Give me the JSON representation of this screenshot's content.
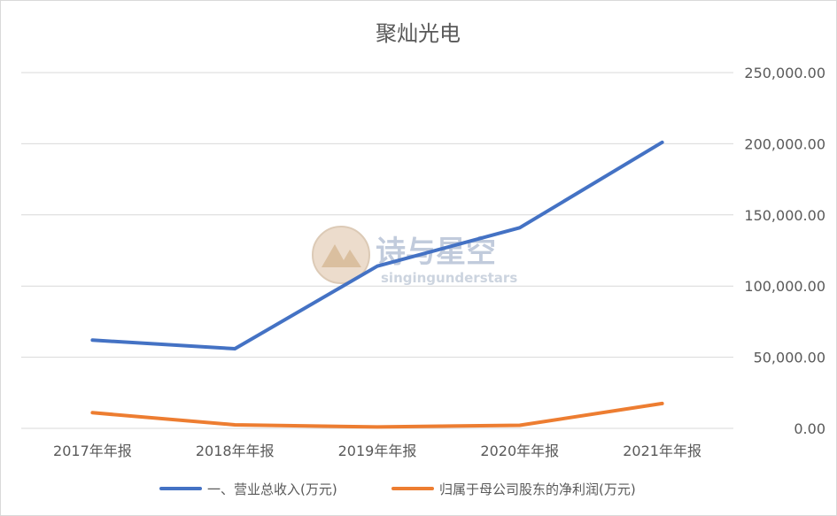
{
  "watermark": {
    "title": "诗与星空",
    "subtitle": "singingunderstars"
  },
  "chart_data": {
    "type": "line",
    "title": "聚灿光电",
    "categories": [
      "2017年年报",
      "2018年年报",
      "2019年年报",
      "2020年年报",
      "2021年年报"
    ],
    "y_axis_position": "right",
    "ylim": [
      0,
      250000
    ],
    "y_ticks": [
      0,
      50000,
      100000,
      150000,
      200000,
      250000
    ],
    "y_tick_labels": [
      "0.00",
      "50,000.00",
      "100,000.00",
      "150,000.00",
      "200,000.00",
      "250,000.00"
    ],
    "grid": true,
    "legend_position": "bottom",
    "series": [
      {
        "name": "一、营业总收入(万元)",
        "color": "#4472c4",
        "values": [
          62000,
          56000,
          114000,
          141000,
          201000
        ]
      },
      {
        "name": "归属于母公司股东的净利润(万元)",
        "color": "#ed7d31",
        "values": [
          11000,
          2500,
          1000,
          2200,
          17500
        ]
      }
    ]
  }
}
